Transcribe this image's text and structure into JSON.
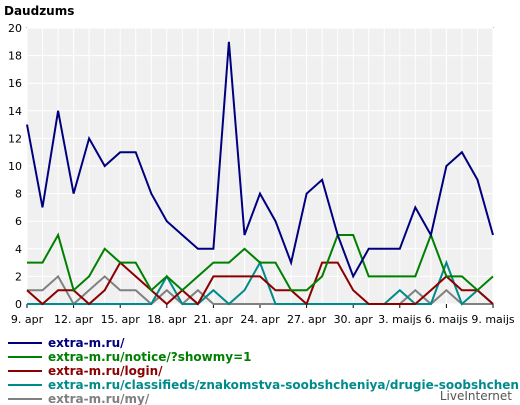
{
  "title": "Daudzums",
  "brand": "LiveInternet",
  "chart_data": {
    "type": "line",
    "title": "Daudzums",
    "ylim": [
      0,
      20
    ],
    "yticks": [
      0,
      2,
      4,
      6,
      8,
      10,
      12,
      14,
      16,
      18,
      20
    ],
    "grid": true,
    "legend_position": "bottom",
    "x": [
      "9. apr",
      "10. apr",
      "11. apr",
      "12. apr",
      "13. apr",
      "14. apr",
      "15. apr",
      "16. apr",
      "17. apr",
      "18. apr",
      "19. apr",
      "20. apr",
      "21. apr",
      "22. apr",
      "23. apr",
      "24. apr",
      "25. apr",
      "26. apr",
      "27. apr",
      "28. apr",
      "29. apr",
      "30. apr",
      "1. maijs",
      "2. maijs",
      "3. maijs",
      "4. maijs",
      "5. maijs",
      "6. maijs",
      "7. maijs",
      "8. maijs",
      "9. maijs"
    ],
    "xtick_labels": [
      "9. apr",
      "12. apr",
      "15. apr",
      "18. apr",
      "21. apr",
      "24. apr",
      "27. apr",
      "30. apr",
      "3. maijs",
      "6. maijs",
      "9. maijs"
    ],
    "series": [
      {
        "name": "extra-m.ru/",
        "color": "#00007f",
        "values": [
          13,
          7,
          14,
          8,
          12,
          10,
          11,
          11,
          8,
          6,
          5,
          4,
          4,
          19,
          5,
          8,
          6,
          3,
          8,
          9,
          5,
          2,
          4,
          4,
          4,
          7,
          5,
          10,
          11,
          9,
          5
        ]
      },
      {
        "name": "extra-m.ru/notice/?showmy=1",
        "color": "#008000",
        "values": [
          3,
          3,
          5,
          1,
          2,
          4,
          3,
          3,
          1,
          2,
          1,
          2,
          3,
          3,
          4,
          3,
          3,
          1,
          1,
          2,
          5,
          5,
          2,
          2,
          2,
          2,
          5,
          2,
          2,
          1,
          2
        ]
      },
      {
        "name": "extra-m.ru/login/",
        "color": "#8b0000",
        "values": [
          1,
          0,
          1,
          1,
          0,
          1,
          3,
          2,
          1,
          0,
          1,
          0,
          2,
          2,
          2,
          2,
          1,
          1,
          0,
          3,
          3,
          1,
          0,
          0,
          0,
          0,
          1,
          2,
          1,
          1,
          0
        ]
      },
      {
        "name": "extra-m.ru/classifieds/znakomstva-soobshcheniya/drugie-soobshcheniya/",
        "color": "#008b8b",
        "values": [
          0,
          0,
          0,
          0,
          0,
          0,
          0,
          0,
          0,
          2,
          0,
          0,
          1,
          0,
          1,
          3,
          0,
          0,
          0,
          0,
          0,
          0,
          0,
          0,
          1,
          0,
          0,
          3,
          0,
          1,
          0
        ]
      },
      {
        "name": "extra-m.ru/my/",
        "color": "#808080",
        "values": [
          1,
          1,
          2,
          0,
          1,
          2,
          1,
          1,
          0,
          1,
          0,
          1,
          0,
          0,
          0,
          0,
          0,
          0,
          0,
          0,
          0,
          0,
          0,
          0,
          0,
          1,
          0,
          1,
          0,
          0,
          0
        ]
      }
    ]
  }
}
